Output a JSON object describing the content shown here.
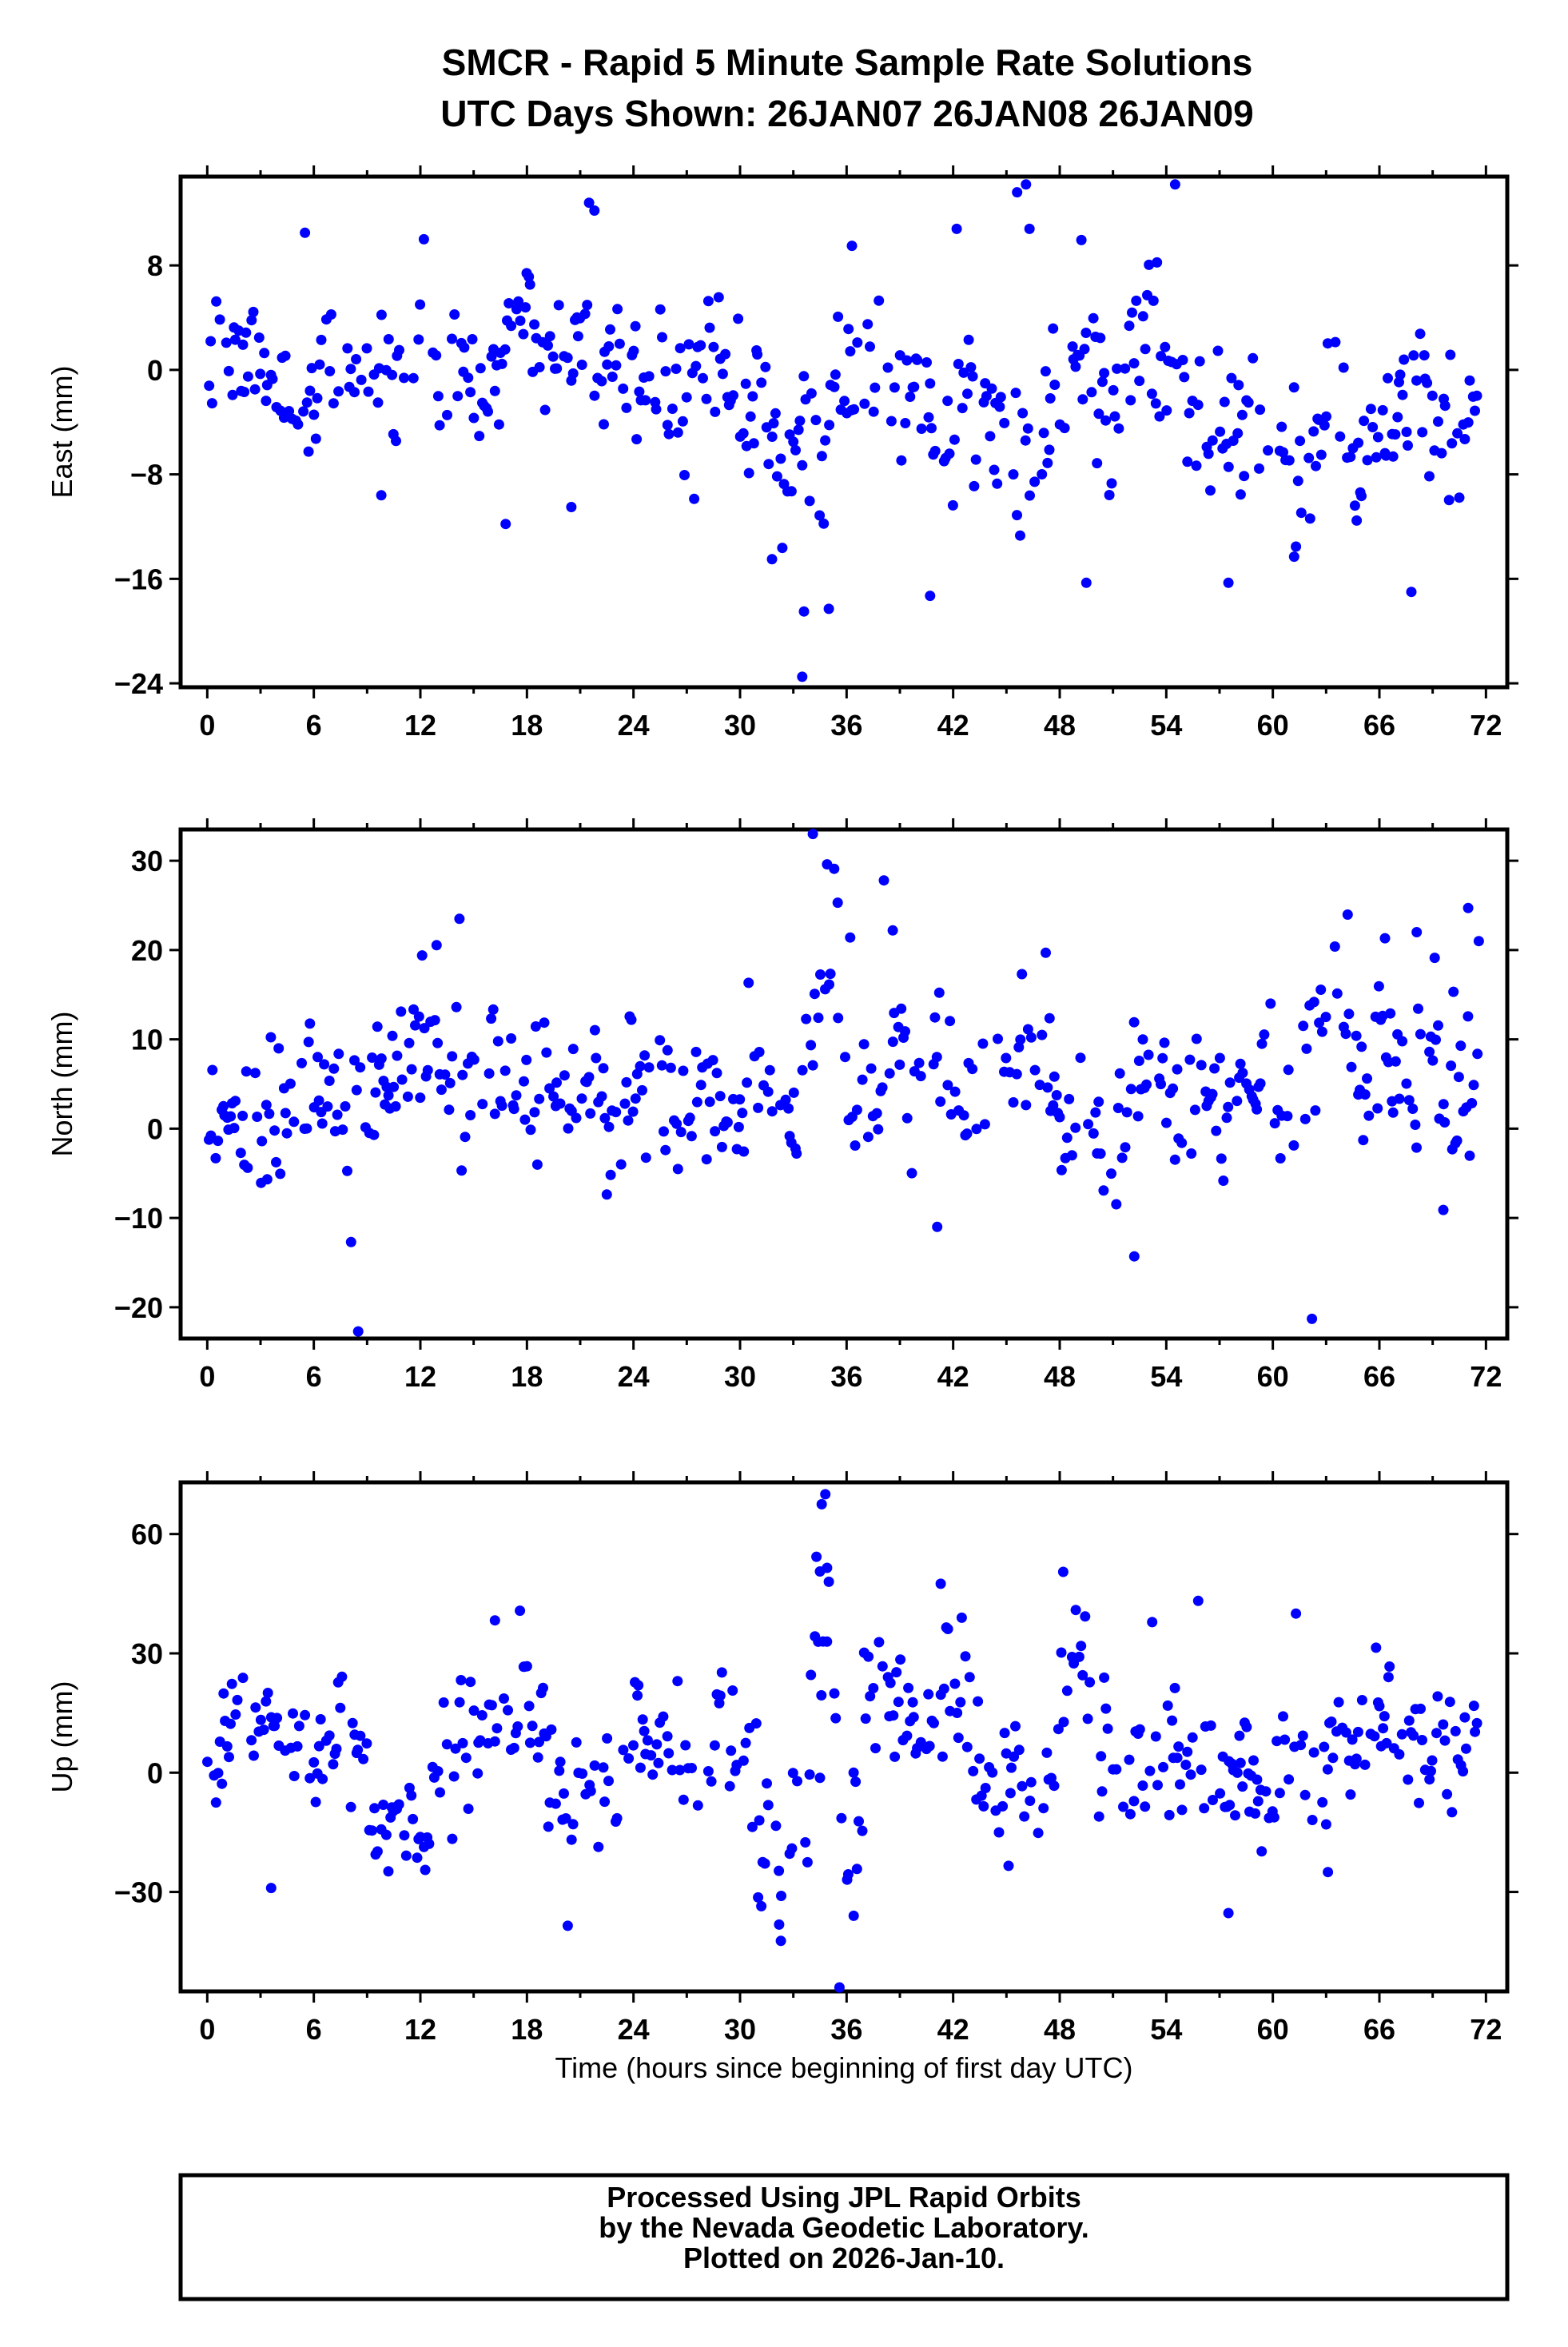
{
  "title_line1": "SMCR - Rapid 5 Minute Sample Rate Solutions",
  "title_line2": "UTC Days Shown:  26JAN07 26JAN08 26JAN09",
  "footer": {
    "line1": "Processed Using JPL Rapid Orbits",
    "line2": "by the Nevada Geodetic Laboratory.",
    "line3": "Plotted on 2026-Jan-10."
  },
  "chart_data": [
    {
      "id": "east",
      "type": "scatter",
      "ylabel": "East (mm)",
      "xlabel": "",
      "xlim": [
        -1.5,
        73.2
      ],
      "ylim": [
        -24.3,
        14.8
      ],
      "xticks": [
        0,
        6,
        12,
        18,
        24,
        30,
        36,
        42,
        48,
        54,
        60,
        66,
        72
      ],
      "yticks": [
        -24,
        -16,
        -8,
        0,
        8
      ],
      "ytick_labels": [
        "−24",
        "−16",
        "−8",
        "0",
        "8"
      ],
      "marker_color": "#0000ff",
      "summary": {
        "typical_range": [
          -8,
          8
        ],
        "min": -23.5,
        "max": 14.2
      },
      "series_seed": 101,
      "segments": [
        {
          "x0": 0,
          "x1": 11,
          "mean": 0.5,
          "sd": 3.0
        },
        {
          "x0": 11,
          "x1": 24,
          "mean": 1.2,
          "sd": 3.2
        },
        {
          "x0": 24,
          "x1": 32,
          "mean": -0.8,
          "sd": 3.5
        },
        {
          "x0": 32,
          "x1": 37,
          "mean": -4.0,
          "sd": 5.0
        },
        {
          "x0": 37,
          "x1": 48,
          "mean": -2.0,
          "sd": 4.0
        },
        {
          "x0": 48,
          "x1": 56,
          "mean": -1.0,
          "sd": 4.5
        },
        {
          "x0": 56,
          "x1": 72,
          "mean": -3.0,
          "sd": 3.6
        }
      ],
      "outliers": [
        {
          "x": 21.5,
          "y": 12.8
        },
        {
          "x": 21.8,
          "y": 12.2
        },
        {
          "x": 45.6,
          "y": 13.6
        },
        {
          "x": 46.1,
          "y": 14.2
        },
        {
          "x": 54.5,
          "y": 14.2
        },
        {
          "x": 33.5,
          "y": -23.5
        },
        {
          "x": 33.6,
          "y": -18.5
        },
        {
          "x": 35.0,
          "y": -18.3
        },
        {
          "x": 40.7,
          "y": -17.3
        },
        {
          "x": 49.5,
          "y": -16.3
        },
        {
          "x": 57.5,
          "y": -16.3
        },
        {
          "x": 67.8,
          "y": -17.0
        },
        {
          "x": 9.8,
          "y": -9.6
        },
        {
          "x": 16.8,
          "y": -11.8
        },
        {
          "x": 61.2,
          "y": -14.3
        },
        {
          "x": 31.8,
          "y": -14.5
        },
        {
          "x": 20.5,
          "y": -10.5
        },
        {
          "x": 5.5,
          "y": 10.5
        },
        {
          "x": 12.2,
          "y": 10.0
        },
        {
          "x": 36.3,
          "y": 9.5
        },
        {
          "x": 42.2,
          "y": 10.8
        },
        {
          "x": 46.3,
          "y": 10.8
        }
      ]
    },
    {
      "id": "north",
      "type": "scatter",
      "ylabel": "North (mm)",
      "xlabel": "",
      "xlim": [
        -1.5,
        73.2
      ],
      "ylim": [
        -23.5,
        33.5
      ],
      "xticks": [
        0,
        6,
        12,
        18,
        24,
        30,
        36,
        42,
        48,
        54,
        60,
        66,
        72
      ],
      "yticks": [
        -20,
        -10,
        0,
        10,
        20,
        30
      ],
      "ytick_labels": [
        "−20",
        "−10",
        "0",
        "10",
        "20",
        "30"
      ],
      "marker_color": "#0000ff",
      "summary": {
        "typical_range": [
          -8,
          20
        ],
        "min": -22.7,
        "max": 33.0
      },
      "series_seed": 202,
      "segments": [
        {
          "x0": 0,
          "x1": 9,
          "mean": 2.5,
          "sd": 4.5
        },
        {
          "x0": 9,
          "x1": 24,
          "mean": 5.0,
          "sd": 5.0
        },
        {
          "x0": 24,
          "x1": 33.5,
          "mean": 2.5,
          "sd": 4.5
        },
        {
          "x0": 33.5,
          "x1": 36,
          "mean": 17.0,
          "sd": 6.0
        },
        {
          "x0": 36,
          "x1": 48,
          "mean": 7.0,
          "sd": 5.0
        },
        {
          "x0": 48,
          "x1": 60,
          "mean": 5.0,
          "sd": 5.0
        },
        {
          "x0": 60,
          "x1": 72,
          "mean": 6.5,
          "sd": 6.0
        }
      ],
      "outliers": [
        {
          "x": 8.5,
          "y": -22.7
        },
        {
          "x": 62.2,
          "y": -21.3
        },
        {
          "x": 34.1,
          "y": 33.0
        },
        {
          "x": 34.9,
          "y": 29.6
        },
        {
          "x": 35.3,
          "y": 29.1
        },
        {
          "x": 38.1,
          "y": 27.8
        },
        {
          "x": 71.0,
          "y": 24.7
        },
        {
          "x": 14.2,
          "y": 23.5
        },
        {
          "x": 52.2,
          "y": -14.3
        },
        {
          "x": 41.1,
          "y": -11.0
        },
        {
          "x": 8.1,
          "y": -12.7
        },
        {
          "x": 69.6,
          "y": -9.1
        },
        {
          "x": 38.6,
          "y": 22.2
        },
        {
          "x": 68.1,
          "y": 22.0
        },
        {
          "x": 12.1,
          "y": 19.4
        },
        {
          "x": 35.5,
          "y": 25.3
        },
        {
          "x": 36.2,
          "y": 21.4
        },
        {
          "x": 71.6,
          "y": 21.0
        }
      ]
    },
    {
      "id": "up",
      "type": "scatter",
      "ylabel": "Up (mm)",
      "xlabel": "Time (hours since beginning of first day UTC)",
      "xlim": [
        -1.5,
        73.2
      ],
      "ylim": [
        -55,
        73
      ],
      "xticks": [
        0,
        6,
        12,
        18,
        24,
        30,
        36,
        42,
        48,
        54,
        60,
        66,
        72
      ],
      "yticks": [
        -30,
        0,
        30,
        60
      ],
      "ytick_labels": [
        "−30",
        "0",
        "30",
        "60"
      ],
      "marker_color": "#0000ff",
      "summary": {
        "typical_range": [
          -25,
          40
        ],
        "min": -54,
        "max": 70
      },
      "series_seed": 303,
      "segments": [
        {
          "x0": 0,
          "x1": 4,
          "mean": 8.0,
          "sd": 8.0
        },
        {
          "x0": 4,
          "x1": 9,
          "mean": 2.0,
          "sd": 10.0
        },
        {
          "x0": 9,
          "x1": 12.5,
          "mean": -14.0,
          "sd": 7.0
        },
        {
          "x0": 12.5,
          "x1": 19,
          "mean": 12.0,
          "sd": 11.0
        },
        {
          "x0": 19,
          "x1": 22,
          "mean": -5.0,
          "sd": 9.0
        },
        {
          "x0": 22,
          "x1": 31,
          "mean": 7.0,
          "sd": 11.0
        },
        {
          "x0": 31,
          "x1": 34,
          "mean": -8.0,
          "sd": 13.0
        },
        {
          "x0": 34,
          "x1": 35.5,
          "mean": 30.0,
          "sd": 14.0
        },
        {
          "x0": 35.5,
          "x1": 37,
          "mean": -12.0,
          "sd": 14.0
        },
        {
          "x0": 37,
          "x1": 43,
          "mean": 12.0,
          "sd": 10.0
        },
        {
          "x0": 43,
          "x1": 48,
          "mean": 0.0,
          "sd": 10.0
        },
        {
          "x0": 48,
          "x1": 50,
          "mean": 28.0,
          "sd": 12.0
        },
        {
          "x0": 50,
          "x1": 57,
          "mean": 3.0,
          "sd": 13.0
        },
        {
          "x0": 57,
          "x1": 60,
          "mean": -8.0,
          "sd": 10.0
        },
        {
          "x0": 60,
          "x1": 72,
          "mean": 5.0,
          "sd": 10.0
        }
      ],
      "outliers": [
        {
          "x": 35.6,
          "y": -54.0
        },
        {
          "x": 34.8,
          "y": 70.0
        },
        {
          "x": 34.6,
          "y": 67.5
        },
        {
          "x": 34.3,
          "y": 54.3
        },
        {
          "x": 34.5,
          "y": 50.6
        },
        {
          "x": 34.9,
          "y": 51.5
        },
        {
          "x": 32.3,
          "y": -42.3
        },
        {
          "x": 32.2,
          "y": -38.2
        },
        {
          "x": 20.3,
          "y": -38.5
        },
        {
          "x": 36.4,
          "y": -36.0
        },
        {
          "x": 57.5,
          "y": -35.3
        },
        {
          "x": 3.6,
          "y": -29.0
        },
        {
          "x": 48.2,
          "y": 50.5
        },
        {
          "x": 41.3,
          "y": 47.5
        },
        {
          "x": 16.2,
          "y": 38.3
        },
        {
          "x": 61.3,
          "y": 40.0
        },
        {
          "x": 55.8,
          "y": 43.2
        },
        {
          "x": 63.1,
          "y": -25.0
        },
        {
          "x": 35.0,
          "y": 48.0
        }
      ]
    }
  ]
}
